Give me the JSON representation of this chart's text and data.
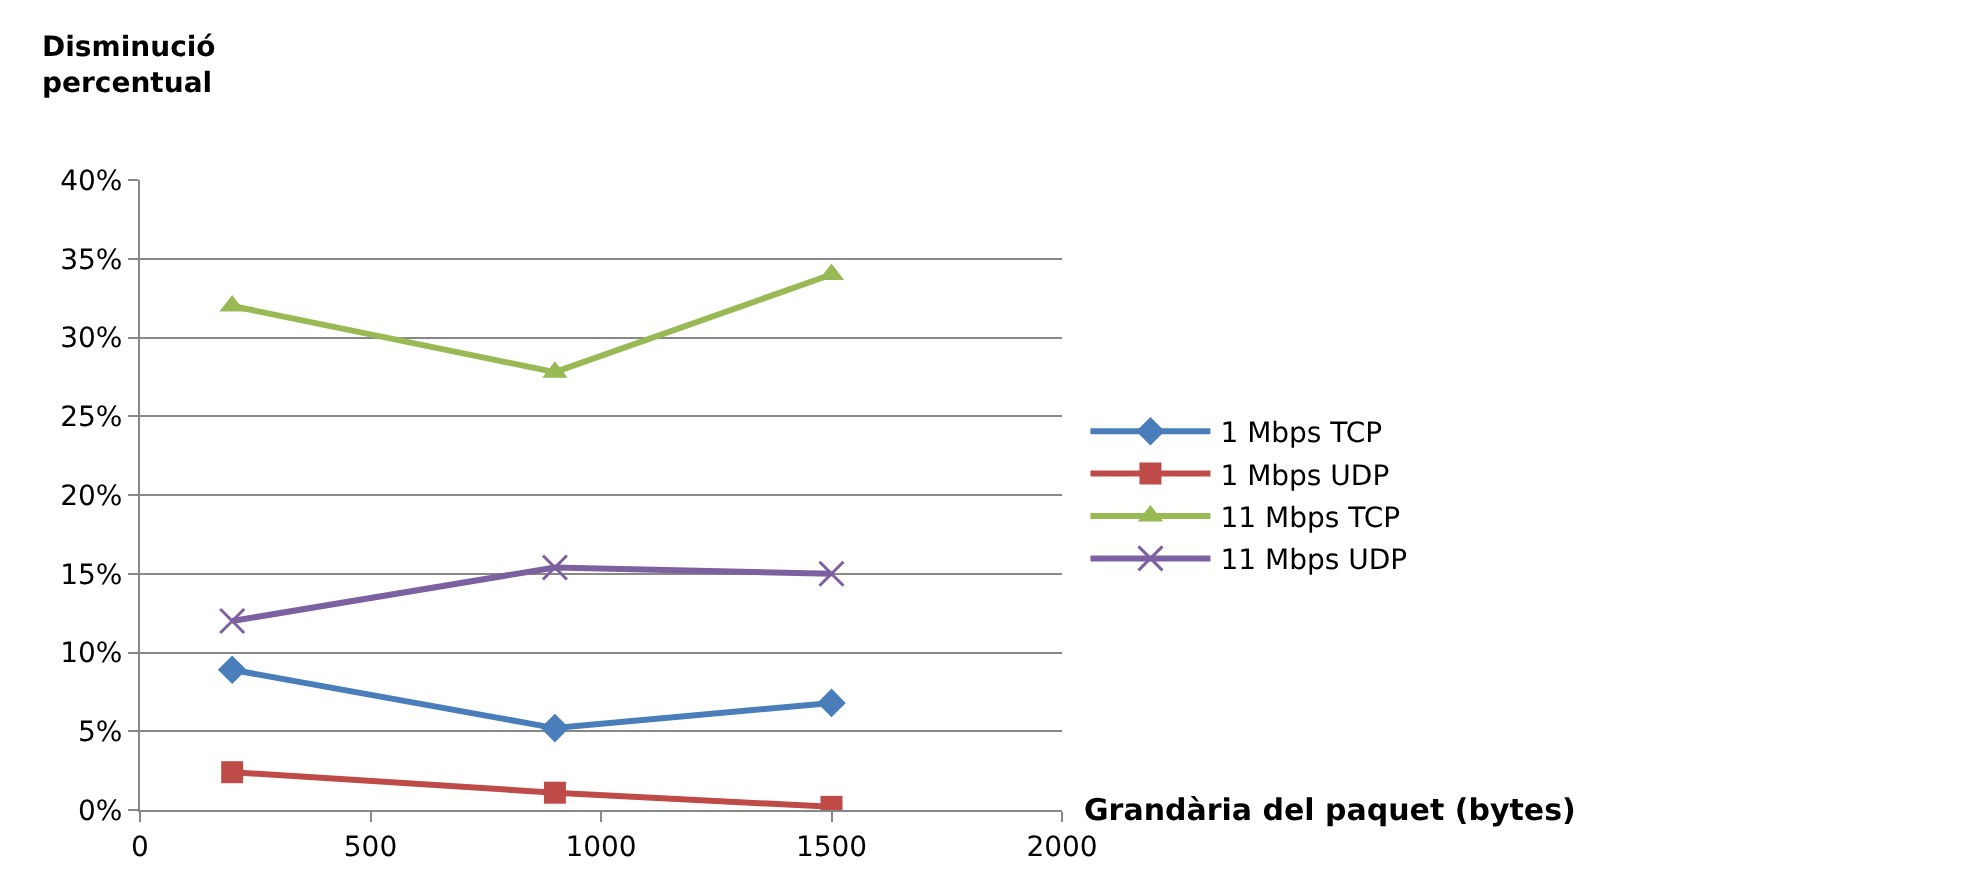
{
  "chart_data": {
    "type": "line",
    "ylabel": "Disminució percentual",
    "xlabel": "Grandària del paquet (bytes)",
    "x": [
      200,
      900,
      1500
    ],
    "series": [
      {
        "name": "1 Mbps TCP",
        "color": "#4a7ebb",
        "marker": "diamond",
        "values": [
          8.9,
          5.2,
          6.8
        ]
      },
      {
        "name": "1 Mbps UDP",
        "color": "#be4b48",
        "marker": "square",
        "values": [
          2.4,
          1.1,
          0.2
        ]
      },
      {
        "name": "11 Mbps TCP",
        "color": "#98b954",
        "marker": "triangle",
        "values": [
          32.0,
          27.8,
          34.0
        ]
      },
      {
        "name": "11 Mbps UDP",
        "color": "#7d60a0",
        "marker": "cross",
        "values": [
          12.0,
          15.4,
          15.0
        ]
      }
    ],
    "xlim": [
      0,
      2000
    ],
    "xticks": [
      0,
      500,
      1000,
      1500,
      2000
    ],
    "ylim": [
      0,
      40
    ],
    "yticks": [
      {
        "value": 0,
        "label": "0%"
      },
      {
        "value": 5,
        "label": "5%"
      },
      {
        "value": 10,
        "label": "10%"
      },
      {
        "value": 15,
        "label": "15%"
      },
      {
        "value": 20,
        "label": "20%"
      },
      {
        "value": 25,
        "label": "25%"
      },
      {
        "value": 30,
        "label": "30%"
      },
      {
        "value": 35,
        "label": "35%"
      },
      {
        "value": 40,
        "label": "40%"
      }
    ],
    "grid": "y",
    "legend": "right",
    "line_style": "solid"
  }
}
